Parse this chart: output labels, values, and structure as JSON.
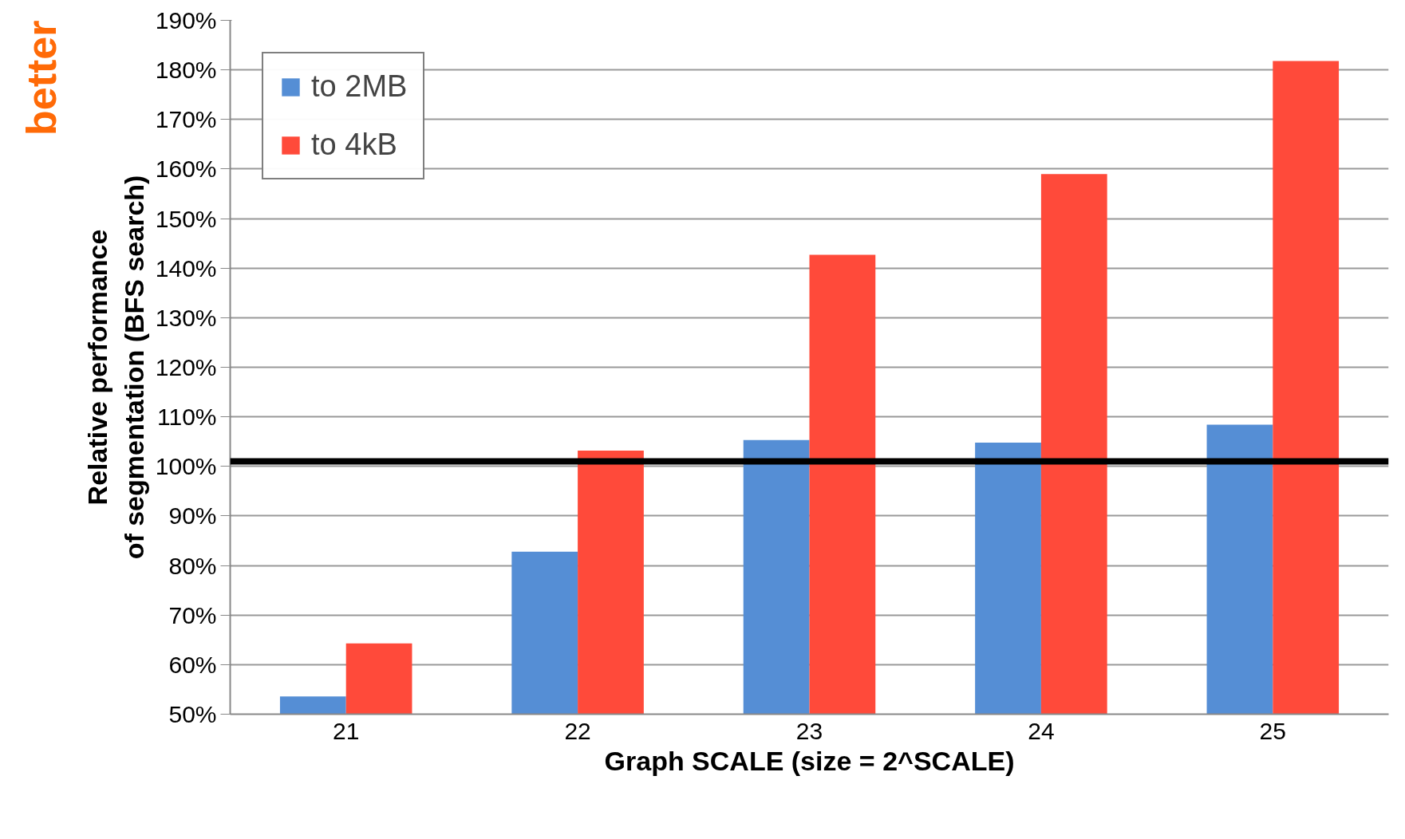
{
  "chart_data": {
    "type": "bar",
    "categories": [
      "21",
      "22",
      "23",
      "24",
      "25"
    ],
    "series": [
      {
        "name": "to 2MB",
        "color": "#558ed5",
        "values": [
          53.6,
          82.8,
          105.3,
          104.8,
          108.4
        ]
      },
      {
        "name": "to 4kB",
        "color": "#ff4a3a",
        "values": [
          64.3,
          103.2,
          142.7,
          159.0,
          181.8
        ]
      }
    ],
    "xlabel": "Graph SCALE (size = 2^SCALE)",
    "ylabel": "Relative performance\nof segmentation (BFS search)",
    "ylim": [
      50,
      190
    ],
    "yticks": [
      {
        "value": 50,
        "label": "50%"
      },
      {
        "value": 60,
        "label": "60%"
      },
      {
        "value": 70,
        "label": "70%"
      },
      {
        "value": 80,
        "label": "80%"
      },
      {
        "value": 90,
        "label": "90%"
      },
      {
        "value": 100,
        "label": "100%"
      },
      {
        "value": 110,
        "label": "110%"
      },
      {
        "value": 120,
        "label": "120%"
      },
      {
        "value": 130,
        "label": "130%"
      },
      {
        "value": 140,
        "label": "140%"
      },
      {
        "value": 150,
        "label": "150%"
      },
      {
        "value": 160,
        "label": "160%"
      },
      {
        "value": 170,
        "label": "170%"
      },
      {
        "value": 180,
        "label": "180%"
      },
      {
        "value": 190,
        "label": "190%"
      }
    ],
    "ref_lines": [
      {
        "axis": "y",
        "value": 101,
        "color": "#000000"
      }
    ],
    "annotations": [
      "better"
    ],
    "grid": "y",
    "legend": "top left"
  }
}
